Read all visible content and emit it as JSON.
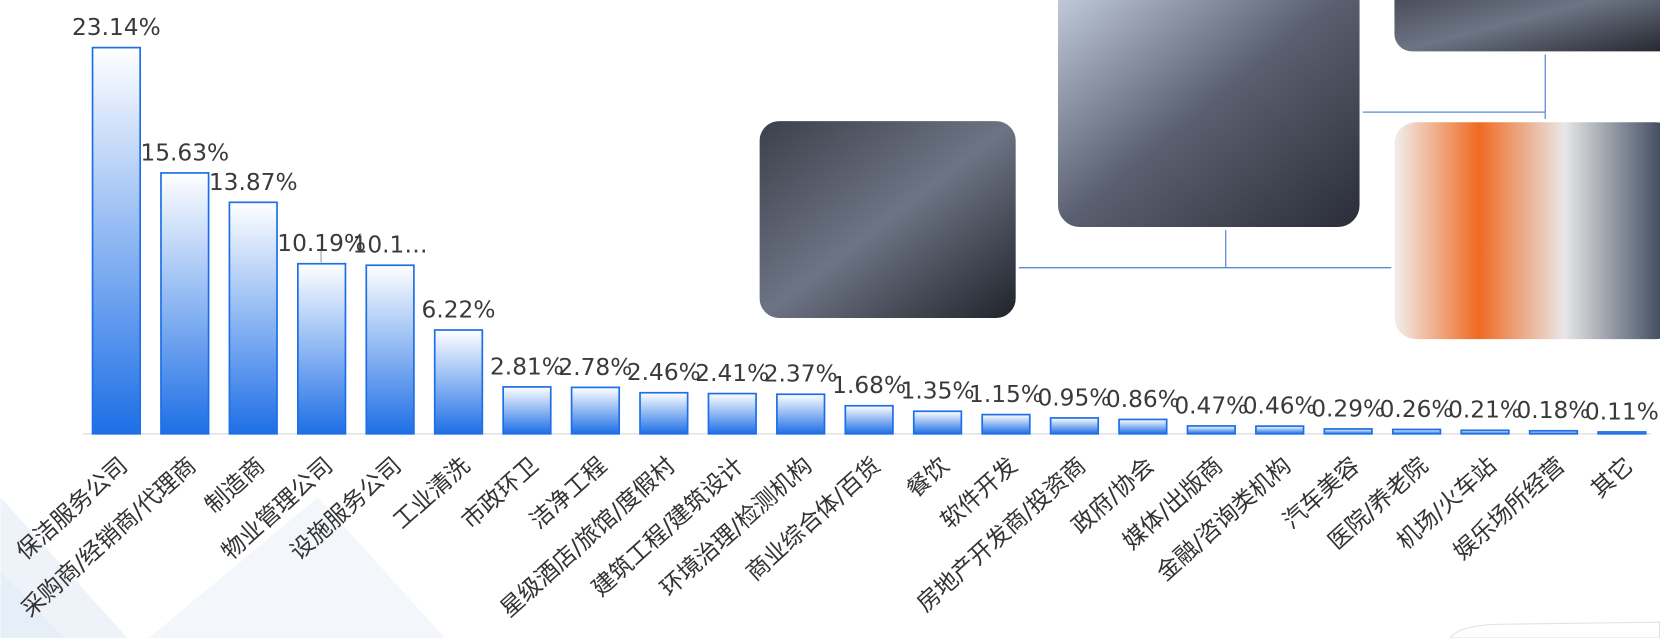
{
  "chart_data": {
    "type": "bar",
    "categories": [
      "保洁服务公司",
      "采购商/经销商/代理商",
      "制造商",
      "物业管理公司",
      "设施服务公司",
      "工业清洗",
      "市政环卫",
      "洁净工程",
      "星级酒店/旅馆/度假村",
      "建筑工程/建筑设计",
      "环境治理/检测机构",
      "商业综合体/百货",
      "餐饮",
      "软件开发",
      "房地产开发商/投资商",
      "政府/协会",
      "媒体/出版商",
      "金融/咨询类机构",
      "汽车美容",
      "医院/养老院",
      "机场/火车站",
      "娱乐场所经营",
      "其它"
    ],
    "values": [
      23.14,
      15.63,
      13.87,
      10.19,
      10.1,
      6.22,
      2.81,
      2.78,
      2.46,
      2.41,
      2.37,
      1.68,
      1.35,
      1.15,
      0.95,
      0.86,
      0.47,
      0.46,
      0.29,
      0.26,
      0.21,
      0.18,
      0.11
    ],
    "value_labels": [
      "23.14%",
      "15.63%",
      "13.87%",
      "10.19%",
      "10.1…",
      "6.22%",
      "2.81%",
      "2.78%",
      "2.46%",
      "2.41%",
      "2.37%",
      "1.68%",
      "1.35%",
      "1.15%",
      "0.95%",
      "0.86%",
      "0.47%",
      "0.46%",
      "0.29%",
      "0.26%",
      "0.21%",
      "0.18%",
      "0.11%"
    ],
    "color": "#1e6fe6"
  }
}
